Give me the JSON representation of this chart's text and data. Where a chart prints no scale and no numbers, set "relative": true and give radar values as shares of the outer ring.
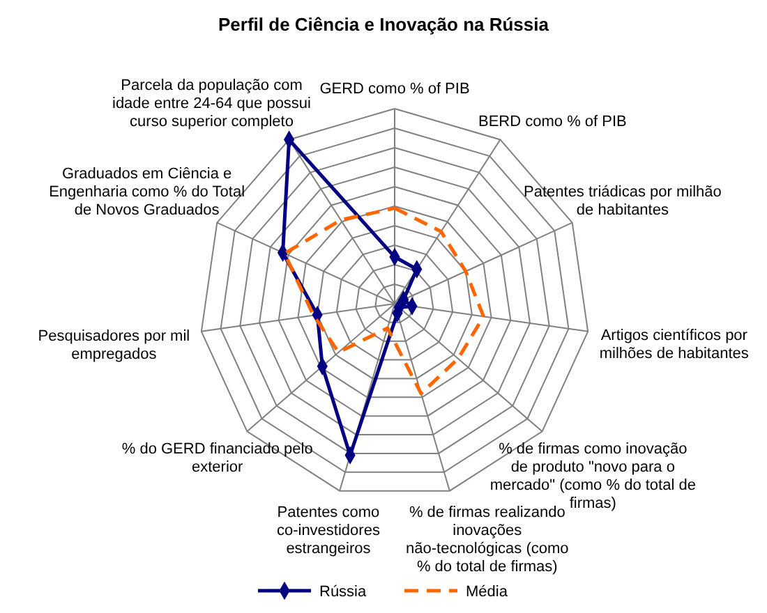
{
  "chart_data": {
    "type": "radar",
    "title": "Perfil de Ciência e Inovação na Rússia",
    "relative": true,
    "grid": true,
    "legend": "bottom",
    "categories": [
      "GERD como  % of PIB",
      "BERD como % of PIB",
      "Patentes triádicas por milhão de habitantes",
      "Artigos científicos por milhões de habitantes",
      "% de firmas como inovação de produto \"novo para o mercado\" (como % do total de firmas)",
      "% de firmas realizando inovações não-tecnológicas (como % do total de firmas)",
      "Patentes como co-investidores estrangeiros",
      "% do GERD financiado pelo exterior",
      "Pesquisadores por mil empregados",
      "Graduados em Ciência e Engenharia como % do Total de Novos Graduados",
      "Parcela da população com idade entre 24-64 que possui curso superior completo"
    ],
    "series": [
      {
        "name": "Rússia",
        "color": "#000080",
        "marker": "diamond",
        "line_style": "solid",
        "values": [
          0.24,
          0.21,
          0.05,
          0.09,
          0.03,
          0.05,
          0.81,
          0.49,
          0.4,
          0.63,
          1.0
        ]
      },
      {
        "name": "Média",
        "color": "#ff6600",
        "marker": "none",
        "line_style": "dashed",
        "values": [
          0.49,
          0.44,
          0.4,
          0.46,
          0.43,
          0.48,
          0.13,
          0.38,
          0.42,
          0.62,
          0.51
        ]
      }
    ]
  }
}
